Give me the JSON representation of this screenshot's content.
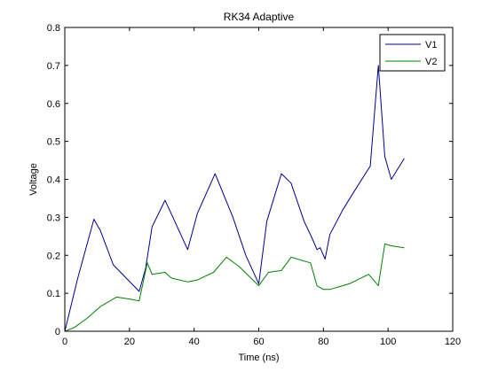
{
  "chart_data": {
    "type": "line",
    "title": "RK34 Adaptive",
    "xlabel": "Time (ns)",
    "ylabel": "Voltage",
    "xlim": [
      0,
      120
    ],
    "ylim": [
      0,
      0.8
    ],
    "xticks": [
      "0",
      "20",
      "40",
      "60",
      "80",
      "100",
      "120"
    ],
    "yticks": [
      "0",
      "0.1",
      "0.2",
      "0.3",
      "0.4",
      "0.5",
      "0.6",
      "0.7",
      "0.8"
    ],
    "grid": false,
    "legend_position": "top-right",
    "series": [
      {
        "name": "V1",
        "color": "#00008b",
        "x": [
          0,
          4,
          9,
          11,
          15,
          19,
          23,
          25,
          27,
          31,
          34,
          38,
          41,
          46.5,
          52,
          56,
          60,
          62.5,
          67,
          70,
          74,
          76.5,
          78,
          79,
          80.5,
          82,
          86,
          90,
          94.5,
          97,
          99,
          101,
          105
        ],
        "y": [
          0,
          0.14,
          0.295,
          0.265,
          0.175,
          0.14,
          0.105,
          0.165,
          0.275,
          0.345,
          0.29,
          0.215,
          0.31,
          0.415,
          0.3,
          0.2,
          0.125,
          0.29,
          0.415,
          0.39,
          0.29,
          0.245,
          0.215,
          0.22,
          0.19,
          0.255,
          0.32,
          0.375,
          0.435,
          0.7,
          0.46,
          0.4,
          0.455
        ]
      },
      {
        "name": "V2",
        "color": "#008000",
        "x": [
          0,
          3,
          7,
          11,
          16,
          20,
          23,
          25.5,
          27,
          31,
          33,
          38,
          41,
          46,
          50,
          54,
          60,
          63,
          67,
          70,
          76,
          78,
          80,
          82,
          88,
          94,
          97,
          99,
          101,
          105
        ],
        "y": [
          0,
          0.01,
          0.035,
          0.065,
          0.09,
          0.085,
          0.08,
          0.18,
          0.15,
          0.155,
          0.14,
          0.13,
          0.135,
          0.155,
          0.195,
          0.17,
          0.12,
          0.155,
          0.16,
          0.195,
          0.18,
          0.12,
          0.11,
          0.11,
          0.125,
          0.15,
          0.12,
          0.23,
          0.225,
          0.22
        ]
      }
    ]
  }
}
